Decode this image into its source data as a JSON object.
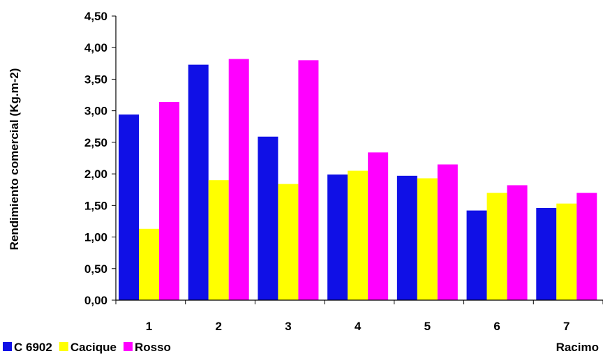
{
  "chart_data": {
    "type": "bar",
    "categories": [
      "1",
      "2",
      "3",
      "4",
      "5",
      "6",
      "7"
    ],
    "series": [
      {
        "name": "C 6902",
        "color": "#1010E6",
        "values": [
          2.94,
          3.73,
          2.59,
          1.99,
          1.97,
          1.42,
          1.46
        ]
      },
      {
        "name": "Cacique",
        "color": "#FFFF00",
        "values": [
          1.13,
          1.9,
          1.84,
          2.05,
          1.93,
          1.7,
          1.53
        ]
      },
      {
        "name": "Rosso",
        "color": "#FF00FF",
        "values": [
          3.14,
          3.82,
          3.8,
          2.34,
          2.15,
          1.82,
          1.7
        ]
      }
    ],
    "ylabel": "Rendimiento comercial (Kg.m-2)",
    "xlabel": "Racimo",
    "ylim": [
      0,
      4.5
    ],
    "ytick_step": 0.5,
    "ytick_labels": [
      "0,00",
      "0,50",
      "1,00",
      "1,50",
      "2,00",
      "2,50",
      "3,00",
      "3,50",
      "4,00",
      "4,50"
    ],
    "grid": false,
    "legend_position": "bottom-left"
  }
}
